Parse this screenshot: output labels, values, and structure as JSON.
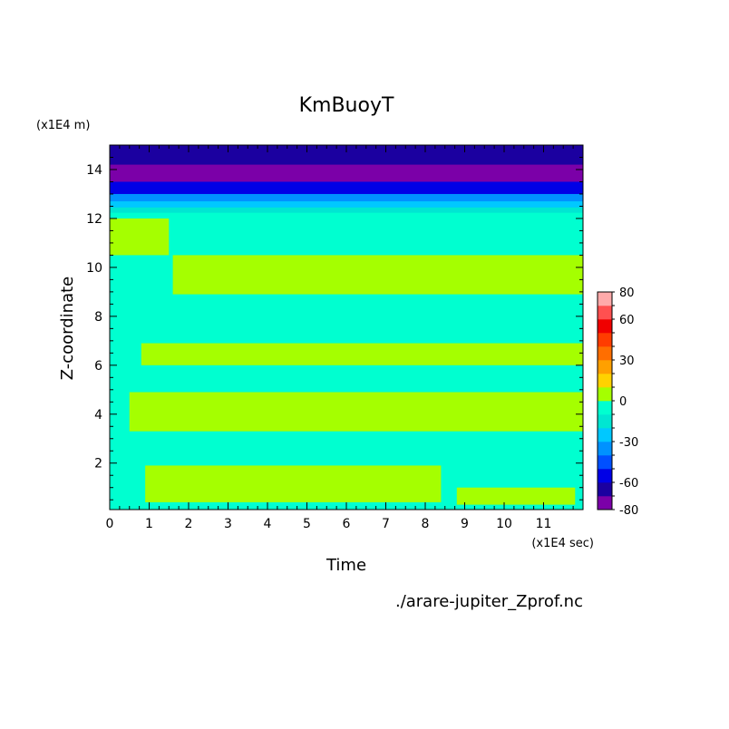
{
  "chart_data": {
    "type": "heatmap",
    "title": "KmBuoyT",
    "xlabel": "Time",
    "ylabel": "Z-coordinate",
    "x_unit_label": "(x1E4 sec)",
    "y_unit_label": "(x1E4 m)",
    "source_label": "./arare-jupiter_Zprof.nc",
    "xlim": [
      0,
      12
    ],
    "ylim": [
      0.1,
      15
    ],
    "x_ticks": [
      0,
      1,
      2,
      3,
      4,
      5,
      6,
      7,
      8,
      9,
      10,
      11
    ],
    "y_ticks": [
      2,
      4,
      6,
      8,
      10,
      12,
      14
    ],
    "colorbar": {
      "levels": [
        -80,
        -70,
        -60,
        -50,
        -40,
        -30,
        -20,
        -10,
        0,
        10,
        20,
        30,
        40,
        50,
        60,
        70,
        80
      ],
      "labels": [
        -80,
        -60,
        -30,
        0,
        30,
        60,
        80
      ],
      "colors": [
        "#7b00a8",
        "#1b00a0",
        "#0000e6",
        "#0050ff",
        "#0092ff",
        "#00c8ff",
        "#00e6d2",
        "#00ffd0",
        "#a5ff00",
        "#ffd200",
        "#ffa000",
        "#ff6e00",
        "#ff3c00",
        "#f00000",
        "#ff5050",
        "#ffaaaa"
      ]
    },
    "top_layers": [
      {
        "y": [
          14.2,
          15.0
        ],
        "value": -70
      },
      {
        "y": [
          13.5,
          14.2
        ],
        "value": -80
      },
      {
        "y": [
          13.0,
          13.5
        ],
        "value": -60
      },
      {
        "y": [
          12.7,
          13.0
        ],
        "value": -40
      },
      {
        "y": [
          12.45,
          12.7
        ],
        "value": -30
      },
      {
        "y": [
          12.25,
          12.45
        ],
        "value": -20
      }
    ],
    "background_value": -5,
    "positive_bands": [
      {
        "y": [
          8.9,
          10.5
        ],
        "x_start": 1.6,
        "value": 5
      },
      {
        "y": [
          6.0,
          6.9
        ],
        "x_start": 0.8,
        "value": 5
      },
      {
        "y": [
          3.3,
          4.9
        ],
        "x_start": 0.5,
        "value": 5
      },
      {
        "y": [
          0.4,
          1.9
        ],
        "x_start": 0.9,
        "x_end": 8.4,
        "value": 5
      },
      {
        "y": [
          10.5,
          12.0
        ],
        "x_start": 0.0,
        "x_end": 1.5,
        "value": 5
      },
      {
        "y": [
          0.3,
          1.0
        ],
        "x_start": 8.8,
        "x_end": 11.8,
        "value": 5
      }
    ]
  }
}
